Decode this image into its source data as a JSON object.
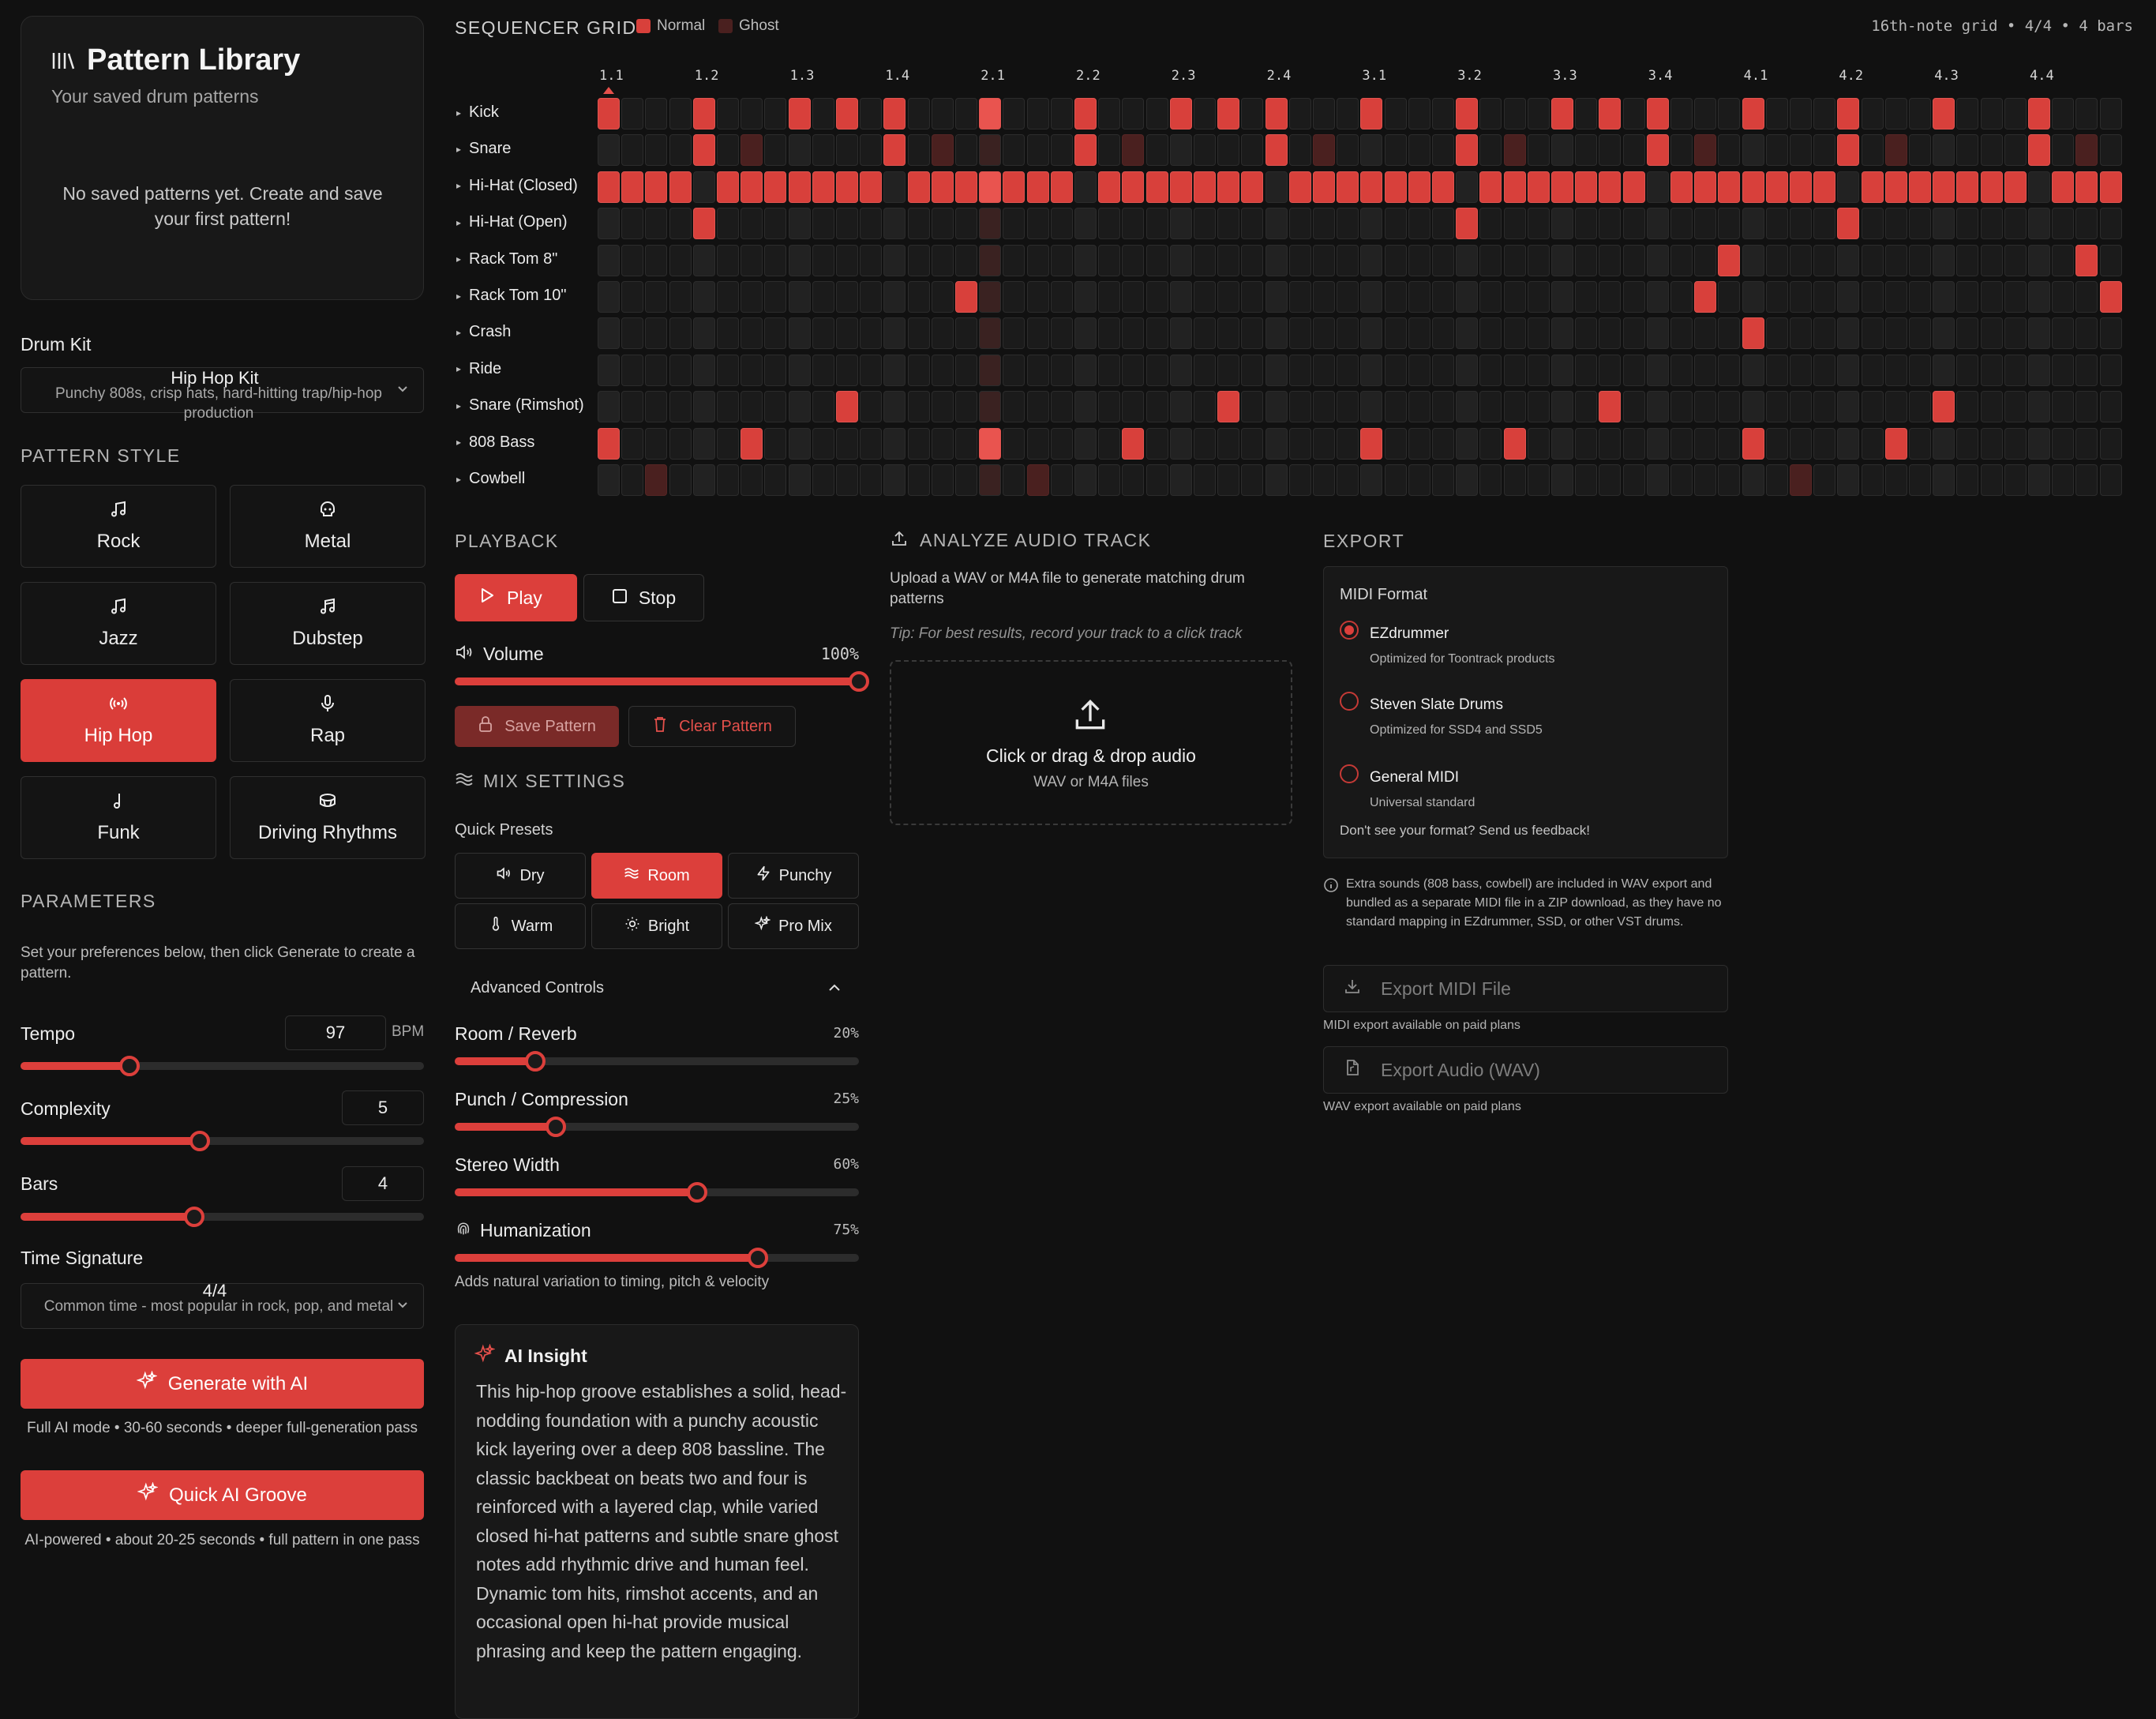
{
  "library": {
    "title": "Pattern Library",
    "subtitle": "Your saved drum patterns",
    "empty": "No saved patterns yet. Create and save your first pattern!"
  },
  "kit": {
    "label": "Drum Kit",
    "name": "Hip Hop Kit",
    "desc": "Punchy 808s, crisp hats, hard-hitting trap/hip-hop production"
  },
  "style": {
    "label": "PATTERN STYLE",
    "items": [
      {
        "label": "Rock",
        "icon": "music-note-icon"
      },
      {
        "label": "Metal",
        "icon": "skull-icon"
      },
      {
        "label": "Jazz",
        "icon": "music-note-icon"
      },
      {
        "label": "Dubstep",
        "icon": "music-notes-icon"
      },
      {
        "label": "Hip Hop",
        "icon": "radio-icon",
        "active": true
      },
      {
        "label": "Rap",
        "icon": "microphone-icon"
      },
      {
        "label": "Funk",
        "icon": "eighth-note-icon"
      },
      {
        "label": "Driving Rhythms",
        "icon": "drum-icon"
      }
    ]
  },
  "params": {
    "label": "PARAMETERS",
    "hint": "Set your preferences below, then click Generate to create a pattern.",
    "tempo": {
      "label": "Tempo",
      "value": "97",
      "unit": "BPM",
      "fraction": 0.27
    },
    "complexity": {
      "label": "Complexity",
      "value": "5",
      "fraction": 0.445
    },
    "bars": {
      "label": "Bars",
      "value": "4",
      "fraction": 0.43
    },
    "timesig": {
      "label": "Time Signature",
      "value": "4/4",
      "desc": "Common time - most popular in rock, pop, and metal"
    }
  },
  "generate": {
    "label": "Generate with AI",
    "note": "Full AI mode • 30-60 seconds • deeper full-generation pass"
  },
  "quick": {
    "label": "Quick AI Groove",
    "note": "AI-powered • about 20-25 seconds • full pattern in one pass"
  },
  "grid": {
    "title": "SEQUENCER GRID",
    "legend_normal": "Normal",
    "legend_ghost": "Ghost",
    "info": "16th-note grid • 4/4 • 4 bars",
    "beats": [
      "1.1",
      "1.2",
      "1.3",
      "1.4",
      "2.1",
      "2.2",
      "2.3",
      "2.4",
      "3.1",
      "3.2",
      "3.3",
      "3.4",
      "4.1",
      "4.2",
      "4.3",
      "4.4"
    ],
    "rows": [
      {
        "name": "Kick",
        "on": [
          0,
          4,
          8,
          10,
          12,
          16,
          20,
          24,
          26,
          28,
          32,
          36,
          40,
          42,
          44,
          48,
          52,
          56,
          60
        ],
        "ghost": []
      },
      {
        "name": "Snare",
        "on": [
          4,
          12,
          20,
          28,
          36,
          44,
          52,
          60
        ],
        "ghost": [
          6,
          14,
          22,
          30,
          38,
          46,
          54,
          62
        ]
      },
      {
        "name": "Hi-Hat (Closed)",
        "on": [
          0,
          1,
          2,
          3,
          5,
          6,
          7,
          8,
          9,
          10,
          11,
          13,
          14,
          15,
          16,
          17,
          18,
          19,
          21,
          22,
          23,
          24,
          25,
          26,
          27,
          29,
          30,
          31,
          32,
          33,
          34,
          35,
          37,
          38,
          39,
          40,
          41,
          42,
          43,
          45,
          46,
          47,
          48,
          49,
          50,
          51,
          53,
          54,
          55,
          56,
          57,
          58,
          59,
          61,
          62,
          63
        ],
        "ghost": []
      },
      {
        "name": "Hi-Hat (Open)",
        "on": [
          4,
          36,
          52
        ],
        "ghost": []
      },
      {
        "name": "Rack Tom 8\"",
        "on": [
          47,
          62
        ],
        "ghost": []
      },
      {
        "name": "Rack Tom 10\"",
        "on": [
          15,
          46,
          63
        ],
        "ghost": []
      },
      {
        "name": "Crash",
        "on": [
          48
        ],
        "ghost": []
      },
      {
        "name": "Ride",
        "on": [],
        "ghost": []
      },
      {
        "name": "Snare (Rimshot)",
        "on": [
          10,
          26,
          42,
          56
        ],
        "ghost": []
      },
      {
        "name": "808 Bass",
        "on": [
          0,
          6,
          16,
          22,
          32,
          38,
          48,
          54
        ],
        "ghost": []
      },
      {
        "name": "Cowbell",
        "on": [],
        "ghost": [
          2,
          18,
          50
        ]
      }
    ]
  },
  "playback": {
    "label": "PLAYBACK",
    "play": "Play",
    "stop": "Stop",
    "volume_label": "Volume",
    "volume_value": "100%",
    "volume_fraction": 1.0,
    "save": "Save Pattern",
    "clear": "Clear Pattern"
  },
  "mix": {
    "label": "MIX SETTINGS",
    "presets_label": "Quick Presets",
    "presets": [
      {
        "label": "Dry",
        "icon": "speaker-icon"
      },
      {
        "label": "Room",
        "icon": "waves-icon",
        "active": true
      },
      {
        "label": "Punchy",
        "icon": "lightning-icon"
      },
      {
        "label": "Warm",
        "icon": "thermometer-icon"
      },
      {
        "label": "Bright",
        "icon": "sun-icon"
      },
      {
        "label": "Pro Mix",
        "icon": "sparkles-icon"
      }
    ],
    "advanced": "Advanced Controls",
    "sliders": [
      {
        "label": "Room / Reverb",
        "value": "20%",
        "fraction": 0.2
      },
      {
        "label": "Punch / Compression",
        "value": "25%",
        "fraction": 0.25
      },
      {
        "label": "Stereo Width",
        "value": "60%",
        "fraction": 0.6
      },
      {
        "label": "Humanization",
        "value": "75%",
        "fraction": 0.75
      }
    ],
    "human_note": "Adds natural variation to timing, pitch & velocity"
  },
  "insight": {
    "title": "AI Insight",
    "body": "This hip-hop groove establishes a solid, head-nodding foundation with a punchy acoustic kick layering over a deep 808 bassline. The classic backbeat on beats two and four is reinforced with a layered clap, while varied closed hi-hat patterns and subtle snare ghost notes add rhythmic drive and human feel. Dynamic tom hits, rimshot accents, and an occasional open hi-hat provide musical phrasing and keep the pattern engaging."
  },
  "analyze": {
    "label": "ANALYZE AUDIO TRACK",
    "desc": "Upload a WAV or M4A file to generate matching drum patterns",
    "tip": "Tip: For best results, record your track to a click track",
    "drop_title": "Click or drag & drop audio",
    "drop_sub": "WAV or M4A files"
  },
  "export": {
    "label": "EXPORT",
    "format_label": "MIDI Format",
    "formats": [
      {
        "name": "EZdrummer",
        "desc": "Optimized for Toontrack products",
        "selected": true
      },
      {
        "name": "Steven Slate Drums",
        "desc": "Optimized for SSD4 and SSD5"
      },
      {
        "name": "General MIDI",
        "desc": "Universal standard"
      }
    ],
    "feedback": "Don't see your format? Send us feedback!",
    "info": "Extra sounds (808 bass, cowbell) are included in WAV export and bundled as a separate MIDI file in a ZIP download, as they have no standard mapping in EZdrummer, SSD, or other VST drums.",
    "midi_btn": "Export MIDI File",
    "midi_note": "MIDI export available on paid plans",
    "wav_btn": "Export Audio (WAV)",
    "wav_note": "WAV export available on paid plans"
  },
  "colors": {
    "accent": "#dc3f3b",
    "ghost": "#4a201f",
    "background": "#111111"
  }
}
